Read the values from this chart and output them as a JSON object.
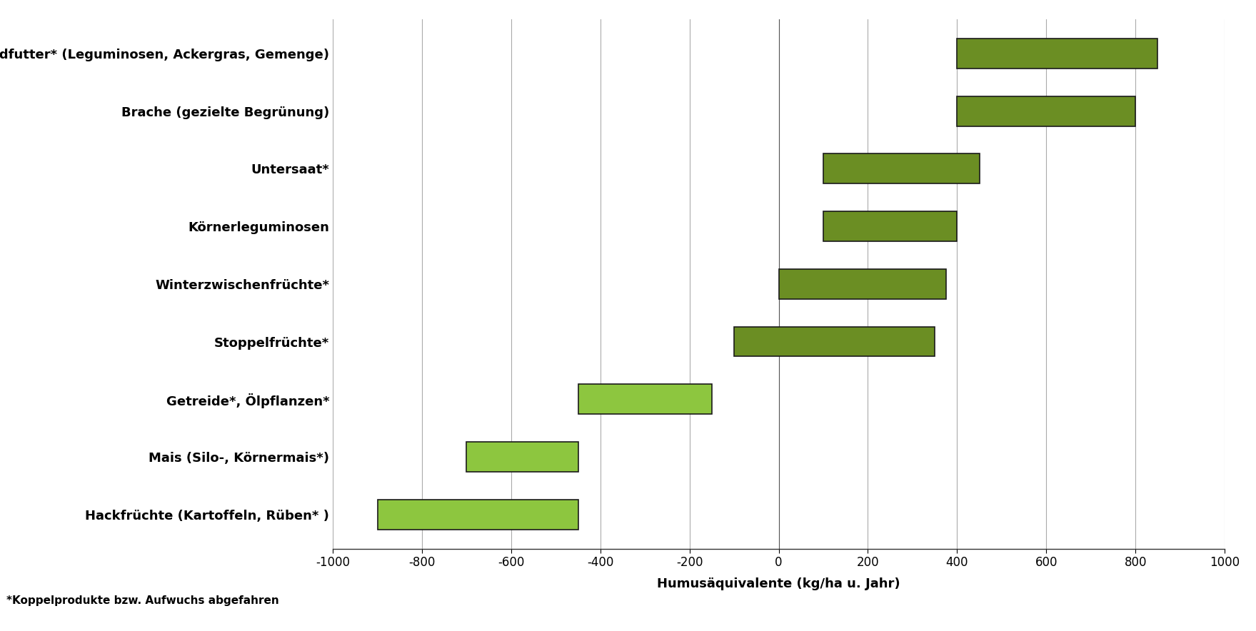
{
  "categories": [
    "Feldfutter* (Leguminosen, Ackergras, Gemenge)",
    "Brache (gezielte Begrünung)",
    "Untersaat*",
    "Körnerleguminosen",
    "Winterzwischenfrüchte*",
    "Stoppelfrüchte*",
    "Getreide*, Ölpflanzen*",
    "Mais (Silo-, Körnermais*)",
    "Hackfrüchte (Kartoffeln, Rüben* )"
  ],
  "bar_ranges": [
    [
      400,
      850
    ],
    [
      400,
      800
    ],
    [
      100,
      450
    ],
    [
      100,
      400
    ],
    [
      0,
      375
    ],
    [
      -100,
      350
    ],
    [
      -450,
      -150
    ],
    [
      -700,
      -450
    ],
    [
      -900,
      -450
    ]
  ],
  "bar_colors": [
    "#6b8e23",
    "#6b8e23",
    "#6b8e23",
    "#6b8e23",
    "#6b8e23",
    "#6b8e23",
    "#8dc63f",
    "#8dc63f",
    "#8dc63f"
  ],
  "xlim": [
    -1000,
    1000
  ],
  "xticks": [
    -1000,
    -800,
    -600,
    -400,
    -200,
    0,
    200,
    400,
    600,
    800,
    1000
  ],
  "xlabel": "Humusäquivalente (kg/ha u. Jahr)",
  "footnote": "*Koppelprodukte bzw. Aufwuchs abgefahren",
  "background_color": "#ffffff",
  "grid_color": "#aaaaaa",
  "bar_edgecolor": "#1a1a1a",
  "bar_height": 0.52
}
